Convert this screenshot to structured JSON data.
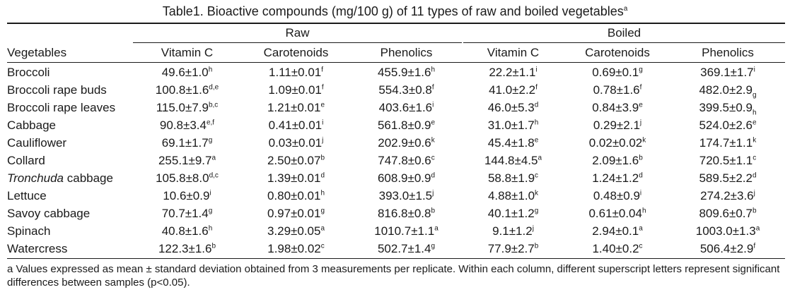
{
  "caption": {
    "text": "Table1. Bioactive compounds (mg/100 g) of 11 types of raw and boiled vegetables",
    "marker": "a"
  },
  "groups": {
    "raw": "Raw",
    "boiled": "Boiled"
  },
  "columns": [
    "Vegetables",
    "Vitamin C",
    "Carotenoids",
    "Phenolics",
    "Vitamin C",
    "Carotenoids",
    "Phenolics"
  ],
  "rows": [
    {
      "name": "Broccoli",
      "italic_part": "",
      "rest": "",
      "cells": [
        {
          "v": "49.6±1.0",
          "s": "h",
          "pos": "sup"
        },
        {
          "v": "1.11±0.01",
          "s": "f",
          "pos": "sup"
        },
        {
          "v": "455.9±1.6",
          "s": "h",
          "pos": "sup"
        },
        {
          "v": "22.2±1.1",
          "s": "i",
          "pos": "sup"
        },
        {
          "v": "0.69±0.1",
          "s": "g",
          "pos": "sup"
        },
        {
          "v": "369.1±1.7",
          "s": "i",
          "pos": "sup"
        }
      ]
    },
    {
      "name": "Broccoli rape buds",
      "italic_part": "",
      "rest": "",
      "cells": [
        {
          "v": "100.8±1.6",
          "s": "d,e",
          "pos": "sup"
        },
        {
          "v": "1.09±0.01",
          "s": "f",
          "pos": "sup"
        },
        {
          "v": "554.3±0.8",
          "s": "f",
          "pos": "sup"
        },
        {
          "v": "41.0±2.2",
          "s": "f",
          "pos": "sup"
        },
        {
          "v": "0.78±1.6",
          "s": "f",
          "pos": "sup"
        },
        {
          "v": "482.0±2.9",
          "s": "g",
          "pos": "sub"
        }
      ]
    },
    {
      "name": "Broccoli rape leaves",
      "italic_part": "",
      "rest": "",
      "cells": [
        {
          "v": "115.0±7.9",
          "s": "b,c",
          "pos": "sup"
        },
        {
          "v": "1.21±0.01",
          "s": "e",
          "pos": "sup"
        },
        {
          "v": "403.6±1.6",
          "s": "i",
          "pos": "sup"
        },
        {
          "v": "46.0±5.3",
          "s": "d",
          "pos": "sup"
        },
        {
          "v": "0.84±3.9",
          "s": "e",
          "pos": "sup"
        },
        {
          "v": "399.5±0.9",
          "s": "h",
          "pos": "sub"
        }
      ]
    },
    {
      "name": "Cabbage",
      "italic_part": "",
      "rest": "",
      "cells": [
        {
          "v": "90.8±3.4",
          "s": "e,f",
          "pos": "sup"
        },
        {
          "v": "0.41±0.01",
          "s": "i",
          "pos": "sup"
        },
        {
          "v": "561.8±0.9",
          "s": "e",
          "pos": "sup"
        },
        {
          "v": "31.0±1.7",
          "s": "h",
          "pos": "sup"
        },
        {
          "v": "0.29±2.1",
          "s": "j",
          "pos": "sup"
        },
        {
          "v": "524.0±2.6",
          "s": "e",
          "pos": "sup"
        }
      ]
    },
    {
      "name": "Cauliflower",
      "italic_part": "",
      "rest": "",
      "cells": [
        {
          "v": "69.1±1.7",
          "s": "g",
          "pos": "sup"
        },
        {
          "v": "0.03±0.01",
          "s": "j",
          "pos": "sup"
        },
        {
          "v": "202.9±0.6",
          "s": "k",
          "pos": "sup"
        },
        {
          "v": "45.4±1.8",
          "s": "e",
          "pos": "sup"
        },
        {
          "v": "0.02±0.02",
          "s": "k",
          "pos": "sup"
        },
        {
          "v": "174.7±1.1",
          "s": "k",
          "pos": "sup"
        }
      ]
    },
    {
      "name": "Collard",
      "italic_part": "",
      "rest": "",
      "cells": [
        {
          "v": "255.1±9.7",
          "s": "a",
          "pos": "sup"
        },
        {
          "v": "2.50±0.07",
          "s": "b",
          "pos": "sup"
        },
        {
          "v": "747.8±0.6",
          "s": "c",
          "pos": "sup"
        },
        {
          "v": "144.8±4.5",
          "s": "a",
          "pos": "sup"
        },
        {
          "v": "2.09±1.6",
          "s": "b",
          "pos": "sup"
        },
        {
          "v": "720.5±1.1",
          "s": "c",
          "pos": "sup"
        }
      ]
    },
    {
      "name": "",
      "italic_part": "Tronchuda",
      "rest": " cabbage",
      "cells": [
        {
          "v": "105.8±8.0",
          "s": "d,c",
          "pos": "sup"
        },
        {
          "v": "1.39±0.01",
          "s": "d",
          "pos": "sup"
        },
        {
          "v": "608.9±0.9",
          "s": "d",
          "pos": "sup"
        },
        {
          "v": "58.8±1.9",
          "s": "c",
          "pos": "sup"
        },
        {
          "v": "1.24±1.2",
          "s": "d",
          "pos": "sup"
        },
        {
          "v": "589.5±2.2",
          "s": "d",
          "pos": "sup"
        }
      ]
    },
    {
      "name": "Lettuce",
      "italic_part": "",
      "rest": "",
      "cells": [
        {
          "v": "10.6±0.9",
          "s": "i",
          "pos": "sup"
        },
        {
          "v": "0.80±0.01",
          "s": "h",
          "pos": "sup"
        },
        {
          "v": "393.0±1.5",
          "s": "j",
          "pos": "sup"
        },
        {
          "v": "4.88±1.0",
          "s": "k",
          "pos": "sup"
        },
        {
          "v": "0.48±0.9",
          "s": "i",
          "pos": "sup"
        },
        {
          "v": "274.2±3.6",
          "s": "j",
          "pos": "sup"
        }
      ]
    },
    {
      "name": "Savoy cabbage",
      "italic_part": "",
      "rest": "",
      "cells": [
        {
          "v": "70.7±1.4",
          "s": "g",
          "pos": "sup"
        },
        {
          "v": "0.97±0.01",
          "s": "g",
          "pos": "sup"
        },
        {
          "v": "816.8±0.8",
          "s": "b",
          "pos": "sup"
        },
        {
          "v": "40.1±1.2",
          "s": "g",
          "pos": "sup"
        },
        {
          "v": "0.61±0.04",
          "s": "h",
          "pos": "sup"
        },
        {
          "v": "809.6±0.7",
          "s": "b",
          "pos": "sup"
        }
      ]
    },
    {
      "name": "Spinach",
      "italic_part": "",
      "rest": "",
      "cells": [
        {
          "v": "40.8±1.6",
          "s": "h",
          "pos": "sup"
        },
        {
          "v": "3.29±0.05",
          "s": "a",
          "pos": "sup"
        },
        {
          "v": "1010.7±1.1",
          "s": "a",
          "pos": "sup"
        },
        {
          "v": "9.1±1.2",
          "s": "j",
          "pos": "sup"
        },
        {
          "v": "2.94±0.1",
          "s": "a",
          "pos": "sup"
        },
        {
          "v": "1003.0±1.3",
          "s": "a",
          "pos": "sup"
        }
      ]
    },
    {
      "name": "Watercress",
      "italic_part": "",
      "rest": "",
      "cells": [
        {
          "v": "122.3±1.6",
          "s": "b",
          "pos": "sup"
        },
        {
          "v": "1.98±0.02",
          "s": "c",
          "pos": "sup"
        },
        {
          "v": "502.7±1.4",
          "s": "g",
          "pos": "sup"
        },
        {
          "v": "77.9±2.7",
          "s": "b",
          "pos": "sup"
        },
        {
          "v": "1.40±0.2",
          "s": "c",
          "pos": "sup"
        },
        {
          "v": "506.4±2.9",
          "s": "f",
          "pos": "sup"
        }
      ]
    }
  ],
  "footnote": "a Values expressed as mean ± standard deviation obtained from 3 measurements per replicate. Within each column, different superscript letters represent significant differences between samples (p<0.05)."
}
